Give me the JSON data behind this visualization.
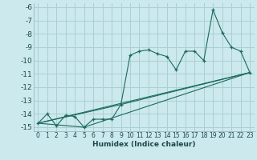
{
  "xlabel": "Humidex (Indice chaleur)",
  "bg_color": "#cce9ed",
  "grid_color": "#aacfd5",
  "line_color": "#1a6b5a",
  "xlim": [
    -0.5,
    23.5
  ],
  "ylim": [
    -15.3,
    -5.7
  ],
  "xticks": [
    0,
    1,
    2,
    3,
    4,
    5,
    6,
    7,
    8,
    9,
    10,
    11,
    12,
    13,
    14,
    15,
    16,
    17,
    18,
    19,
    20,
    21,
    22,
    23
  ],
  "yticks": [
    -15,
    -14,
    -13,
    -12,
    -11,
    -10,
    -9,
    -8,
    -7,
    -6
  ],
  "series1_x": [
    0,
    1,
    2,
    3,
    4,
    5,
    6,
    7,
    8,
    9,
    10,
    11,
    12,
    13,
    14,
    15,
    16,
    17,
    18,
    19,
    20,
    21,
    22,
    23
  ],
  "series1_y": [
    -14.7,
    -14.0,
    -14.9,
    -14.1,
    -14.2,
    -15.0,
    -14.4,
    -14.4,
    -14.4,
    -13.3,
    -9.6,
    -9.3,
    -9.2,
    -9.5,
    -9.7,
    -10.7,
    -9.3,
    -9.3,
    -10.0,
    -6.2,
    -7.9,
    -9.0,
    -9.3,
    -10.9
  ],
  "series2_x": [
    0,
    23
  ],
  "series2_y": [
    -14.7,
    -10.9
  ],
  "series3_x": [
    0,
    5,
    23
  ],
  "series3_y": [
    -14.7,
    -15.0,
    -10.9
  ],
  "series4_x": [
    0,
    9,
    23
  ],
  "series4_y": [
    -14.7,
    -13.3,
    -10.9
  ]
}
